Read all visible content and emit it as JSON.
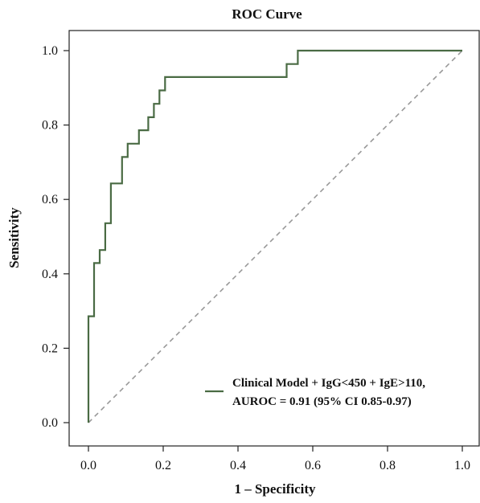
{
  "chart_data": {
    "type": "line",
    "title": "ROC Curve",
    "xlabel": "1 – Specificity",
    "ylabel": "Sensitivity",
    "xlim": [
      0.0,
      1.0
    ],
    "ylim": [
      0.0,
      1.0
    ],
    "x_ticks": [
      "0.0",
      "0.2",
      "0.4",
      "0.6",
      "0.8",
      "1.0"
    ],
    "y_ticks": [
      "0.0",
      "0.2",
      "0.4",
      "0.6",
      "0.8",
      "1.0"
    ],
    "grid": false,
    "legend_position": "bottom-right",
    "colors": {
      "curve": "#4a6b44",
      "reference": "#999999"
    },
    "series": [
      {
        "name": "Clinical Model + IgG<450 + IgE>110, AUROC = 0.91 (95% CI 0.85-0.97)",
        "style": "step",
        "x": [
          0.0,
          0.0,
          0.015,
          0.015,
          0.03,
          0.03,
          0.045,
          0.045,
          0.06,
          0.06,
          0.09,
          0.09,
          0.105,
          0.105,
          0.135,
          0.135,
          0.16,
          0.16,
          0.175,
          0.175,
          0.19,
          0.19,
          0.205,
          0.205,
          0.53,
          0.53,
          0.56,
          0.56,
          1.0
        ],
        "y": [
          0.0,
          0.286,
          0.286,
          0.429,
          0.429,
          0.464,
          0.464,
          0.536,
          0.536,
          0.643,
          0.643,
          0.714,
          0.714,
          0.75,
          0.75,
          0.786,
          0.786,
          0.821,
          0.821,
          0.857,
          0.857,
          0.893,
          0.893,
          0.929,
          0.929,
          0.964,
          0.964,
          1.0,
          1.0
        ]
      },
      {
        "name": "",
        "style": "dashed",
        "x": [
          0.0,
          1.0
        ],
        "y": [
          0.0,
          1.0
        ]
      }
    ],
    "legend": {
      "lines": [
        "Clinical Model + IgG<450 + IgE>110,",
        "AUROC = 0.91 (95% CI 0.85-0.97)"
      ]
    }
  }
}
